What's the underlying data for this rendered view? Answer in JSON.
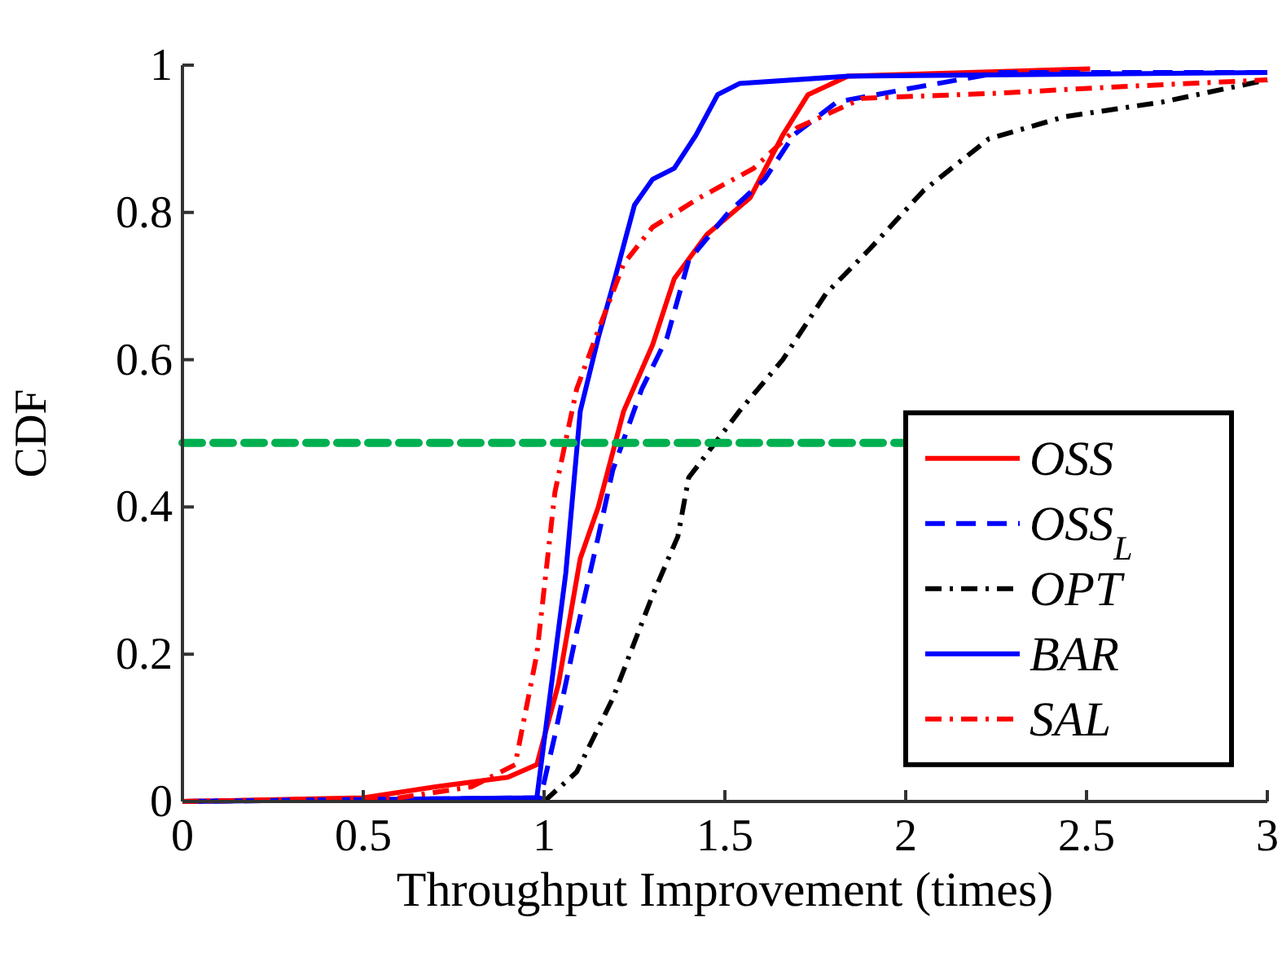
{
  "chart_data": {
    "type": "line",
    "xlabel": "Throughput Improvement (times)",
    "ylabel": "CDF",
    "xlim": [
      0,
      3
    ],
    "xticks": [
      0,
      0.5,
      1,
      1.5,
      2,
      2.5,
      3
    ],
    "ylim": [
      0,
      1
    ],
    "yticks": [
      0,
      0.2,
      0.4,
      0.6,
      0.8,
      1
    ],
    "legend": "right",
    "grid": false,
    "series": [
      {
        "name": "OSS",
        "color": "#ff0000",
        "line_style": "solid",
        "x": [
          0,
          0.5,
          0.7,
          0.9,
          0.98,
          1.04,
          1.1,
          1.15,
          1.22,
          1.3,
          1.36,
          1.45,
          1.57,
          1.66,
          1.73,
          1.84,
          2.51
        ],
        "values": [
          0,
          0.005,
          0.02,
          0.033,
          0.05,
          0.16,
          0.33,
          0.4,
          0.53,
          0.62,
          0.71,
          0.77,
          0.82,
          0.905,
          0.96,
          0.985,
          0.995
        ]
      },
      {
        "name": "OSS$_{L}$",
        "color": "#0000ff",
        "line_style": "dashed",
        "x": [
          0,
          0.99,
          1.03,
          1.09,
          1.15,
          1.19,
          1.27,
          1.34,
          1.4,
          1.51,
          1.61,
          1.69,
          1.81,
          2.03,
          2.26,
          3
        ],
        "values": [
          0,
          0.005,
          0.09,
          0.23,
          0.36,
          0.45,
          0.56,
          0.63,
          0.735,
          0.8,
          0.845,
          0.905,
          0.95,
          0.97,
          0.99,
          0.99
        ]
      },
      {
        "name": "OPT",
        "color": "#000000",
        "line_style": "dashdot",
        "x": [
          1,
          1.09,
          1.19,
          1.3,
          1.37,
          1.4,
          1.54,
          1.66,
          1.78,
          1.9,
          2.05,
          2.23,
          2.44,
          2.71,
          3
        ],
        "values": [
          0,
          0.04,
          0.14,
          0.28,
          0.36,
          0.44,
          0.53,
          0.6,
          0.69,
          0.75,
          0.83,
          0.9,
          0.93,
          0.95,
          0.98
        ]
      },
      {
        "name": "BAR",
        "color": "#0000ff",
        "line_style": "solid",
        "x": [
          0,
          0.98,
          1.06,
          1.1,
          1.15,
          1.19,
          1.25,
          1.3,
          1.36,
          1.42,
          1.48,
          1.54,
          1.84,
          3
        ],
        "values": [
          0,
          0.005,
          0.31,
          0.53,
          0.63,
          0.7,
          0.81,
          0.845,
          0.86,
          0.905,
          0.96,
          0.975,
          0.985,
          0.99
        ]
      },
      {
        "name": "SAL",
        "color": "#ff0000",
        "line_style": "dashdot",
        "x": [
          0,
          0.6,
          0.8,
          0.92,
          0.98,
          1.03,
          1.09,
          1.15,
          1.22,
          1.3,
          1.43,
          1.58,
          1.7,
          1.88,
          2.26,
          2.56,
          3
        ],
        "values": [
          0,
          0.005,
          0.02,
          0.05,
          0.2,
          0.42,
          0.56,
          0.64,
          0.73,
          0.78,
          0.82,
          0.86,
          0.915,
          0.955,
          0.962,
          0.97,
          0.98
        ]
      },
      {
        "color": "#00b050",
        "line_style": "dashed",
        "x": [
          0,
          2
        ],
        "values": [
          0.487,
          0.487
        ]
      }
    ]
  }
}
